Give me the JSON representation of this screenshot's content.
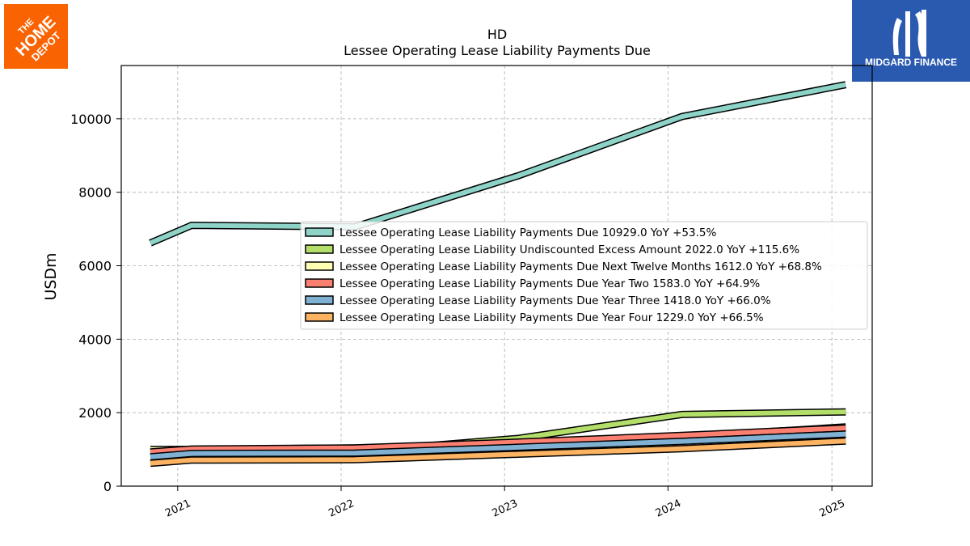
{
  "logos": {
    "left": {
      "icon": "home-depot-logo-icon",
      "text": "THE HOME DEPOT",
      "color": "#f96302"
    },
    "right": {
      "icon": "midgard-finance-logo-icon",
      "text": "MIDGARD FINANCE",
      "color": "#2a59b0"
    }
  },
  "chart_data": {
    "type": "line",
    "title": "HD",
    "subtitle": "Lessee Operating Lease Liability Payments Due",
    "ylabel": "USDm",
    "xlabel": "",
    "x": [
      "2020-11-01",
      "2021-02-01",
      "2022-02-01",
      "2023-02-01",
      "2024-02-01",
      "2025-02-01"
    ],
    "xticks": [
      "2021",
      "2022",
      "2023",
      "2024",
      "2025"
    ],
    "xtick_dates": [
      "2021-01-01",
      "2022-01-01",
      "2023-01-01",
      "2024-01-01",
      "2025-01-01"
    ],
    "xlim": [
      "2020-08-28",
      "2025-04-01"
    ],
    "ylim": [
      0,
      11450
    ],
    "yticks": [
      "0",
      "2000",
      "4000",
      "6000",
      "8000",
      "10000"
    ],
    "ytick_values": [
      0,
      2000,
      4000,
      6000,
      8000,
      10000
    ],
    "grid": true,
    "legend_position": "center-right",
    "series": [
      {
        "name": "Lessee Operating Lease Liability Payments Due  10929.0 YoY +53.5%",
        "color": "#8dd3c7",
        "values": [
          6620,
          7100,
          7060,
          8450,
          10060,
          10929
        ]
      },
      {
        "name": "Lessee Operating Lease Liability Undiscounted Excess Amount  2022.0 YoY +115.6%",
        "color": "#b3de69",
        "values": null,
        "values_full": [
          950,
          940,
          940,
          1300,
          1950,
          2022
        ]
      },
      {
        "name": "Lessee Operating Lease Liability Payments Due Next Twelve Months  1612.0 YoY +68.8%",
        "color": "#ffffb3",
        "values": [
          1000,
          1000,
          1040,
          1150,
          1340,
          1612
        ]
      },
      {
        "name": "Lessee Operating Lease Liability Payments Due Year Two  1583.0 YoY +64.9%",
        "color": "#fb8072",
        "values": [
          930,
          1010,
          1040,
          1200,
          1380,
          1583
        ]
      },
      {
        "name": "Lessee Operating Lease Liability Payments Due Year Three  1418.0 YoY +66.0%",
        "color": "#80b1d3",
        "values": [
          800,
          890,
          900,
          1060,
          1220,
          1418
        ]
      },
      {
        "name": "Lessee Operating Lease Liability Payments Due Year Four  1229.0 YoY +66.5%",
        "color": "#fdb462",
        "values": [
          620,
          710,
          720,
          870,
          1020,
          1229
        ]
      }
    ]
  }
}
